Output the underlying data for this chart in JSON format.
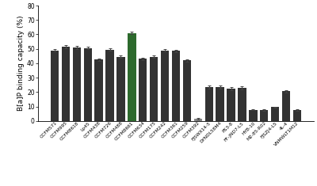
{
  "categories": [
    "CCFM571",
    "CCFM995",
    "CCFM8618",
    "Lp45",
    "CCFM438",
    "CCFM726",
    "CCFM488",
    "CCFM8661",
    "CCFM634",
    "CCFM175",
    "CCFM242",
    "CCFM361",
    "CCFM259",
    "CCFM392",
    "FJSWX14-5",
    "DYNDL58M4",
    "PS3-8",
    "FF-JND7-L5",
    "HYB-10",
    "M2-85-R02",
    "FJSZJ4-L5",
    "4L-4",
    "VNMWLT1M12"
  ],
  "values": [
    49.0,
    51.5,
    51.0,
    50.5,
    42.5,
    49.5,
    44.5,
    61.0,
    43.0,
    44.5,
    49.0,
    48.5,
    42.0,
    1.5,
    23.5,
    23.5,
    22.5,
    23.0,
    7.8,
    7.5,
    9.5,
    20.5,
    7.5
  ],
  "errors": [
    1.0,
    1.2,
    1.0,
    0.8,
    0.8,
    0.8,
    0.8,
    0.8,
    0.8,
    0.8,
    0.8,
    0.8,
    0.8,
    0.3,
    1.2,
    1.2,
    1.2,
    1.2,
    0.5,
    0.5,
    0.5,
    0.7,
    0.5
  ],
  "bar_colors": [
    "#333333",
    "#333333",
    "#333333",
    "#333333",
    "#333333",
    "#333333",
    "#333333",
    "#2d6a2d",
    "#333333",
    "#333333",
    "#333333",
    "#333333",
    "#333333",
    "#888888",
    "#333333",
    "#333333",
    "#333333",
    "#333333",
    "#333333",
    "#333333",
    "#333333",
    "#333333",
    "#333333"
  ],
  "ylabel": "B[a]P binding capacity (%)",
  "ylim": [
    0,
    80
  ],
  "yticks": [
    0,
    10,
    20,
    30,
    40,
    50,
    60,
    70,
    80
  ],
  "background_color": "#ffffff",
  "bar_width": 0.75,
  "ylabel_fontsize": 6.5,
  "ytick_fontsize": 5.5,
  "xtick_fontsize": 4.2
}
